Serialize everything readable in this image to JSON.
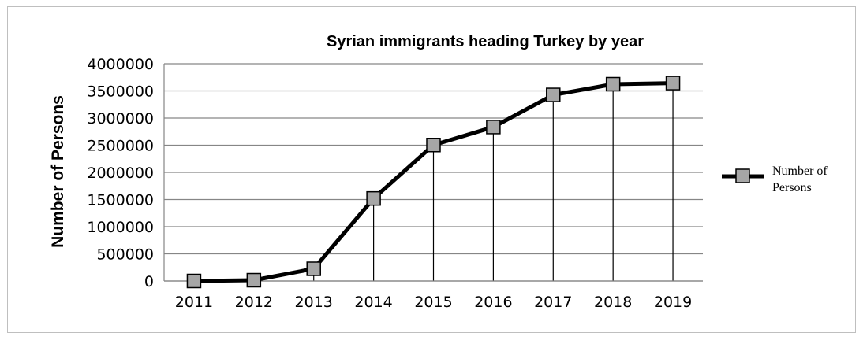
{
  "chart_data": {
    "type": "line",
    "title": "Syrian immigrants heading Turkey by year",
    "xlabel": "",
    "ylabel": "Number of Persons",
    "categories": [
      "2011",
      "2012",
      "2013",
      "2014",
      "2015",
      "2016",
      "2017",
      "2018",
      "2019"
    ],
    "series": [
      {
        "name": "Number of Persons",
        "legend_lines": [
          "Number of",
          "Persons"
        ],
        "values": [
          0,
          14237,
          224655,
          1519286,
          2503549,
          2834441,
          3426786,
          3623192,
          3643769
        ],
        "color": "#000000",
        "marker_fill": "#a6a6a6",
        "marker": "square"
      }
    ],
    "ylim": [
      0,
      4000000
    ],
    "yticks": [
      "0",
      "500000",
      "1000000",
      "1500000",
      "2000000",
      "2500000",
      "3000000",
      "3500000",
      "4000000"
    ],
    "grid": true,
    "drop_lines": true,
    "legend_position": "right"
  }
}
